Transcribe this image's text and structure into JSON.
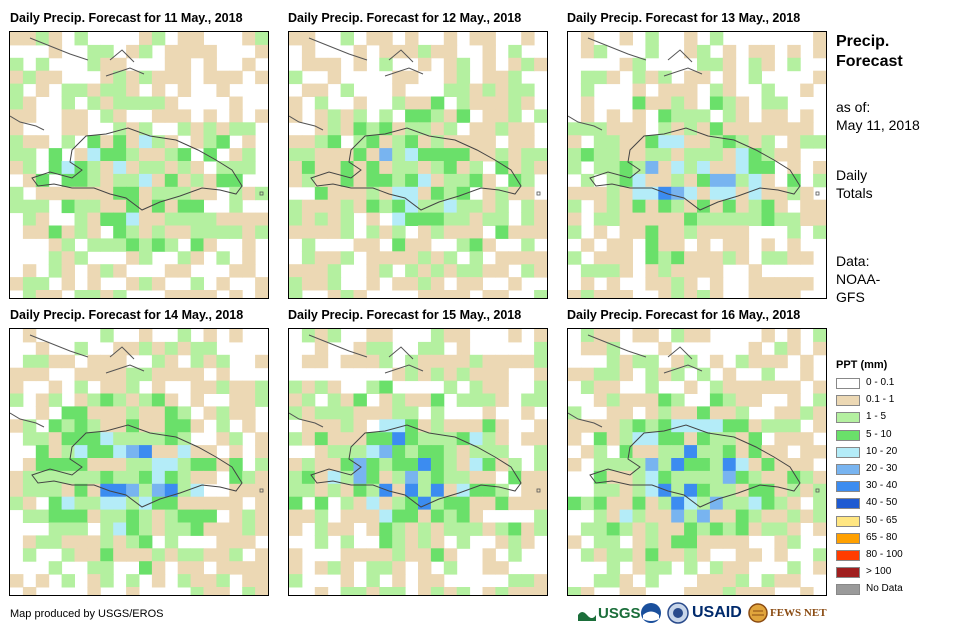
{
  "panels": [
    {
      "title": "Daily Precip. Forecast for 11 May., 2018"
    },
    {
      "title": "Daily Precip. Forecast for 12 May., 2018"
    },
    {
      "title": "Daily Precip. Forecast for 13 May., 2018"
    },
    {
      "title": "Daily Precip. Forecast for 14 May., 2018"
    },
    {
      "title": "Daily Precip. Forecast for 15 May., 2018"
    },
    {
      "title": "Daily Precip. Forecast for 16 May., 2018"
    }
  ],
  "side": {
    "title_line1": "Precip.",
    "title_line2": "Forecast",
    "asof_line1": "as of:",
    "asof_line2": "May 11, 2018",
    "totals_line1": "Daily",
    "totals_line2": "Totals",
    "data_line1": "Data:",
    "data_line2": "NOAA-",
    "data_line3": "GFS"
  },
  "legend": {
    "title": "PPT (mm)",
    "items": [
      {
        "label": "0 - 0.1",
        "color": "#ffffff"
      },
      {
        "label": "0.1 - 1",
        "color": "#ecd8b4"
      },
      {
        "label": "1 - 5",
        "color": "#b4f0a0"
      },
      {
        "label": "5 - 10",
        "color": "#6ae06a"
      },
      {
        "label": "10 - 20",
        "color": "#b4ecf8"
      },
      {
        "label": "20 - 30",
        "color": "#78b4f0"
      },
      {
        "label": "30 - 40",
        "color": "#3c8cf0"
      },
      {
        "label": "40 - 50",
        "color": "#1e5ad2"
      },
      {
        "label": "50 - 65",
        "color": "#ffe682"
      },
      {
        "label": "65 - 80",
        "color": "#ffa000"
      },
      {
        "label": "80 - 100",
        "color": "#ff3c00"
      },
      {
        "label": "> 100",
        "color": "#a01e1e"
      },
      {
        "label": "No Data",
        "color": "#9a9a9a"
      }
    ]
  },
  "credit": "Map produced by USGS/EROS",
  "logos": {
    "usgs": "USGS",
    "usaid": "USAID",
    "fewsnet": "FEWS NET"
  }
}
